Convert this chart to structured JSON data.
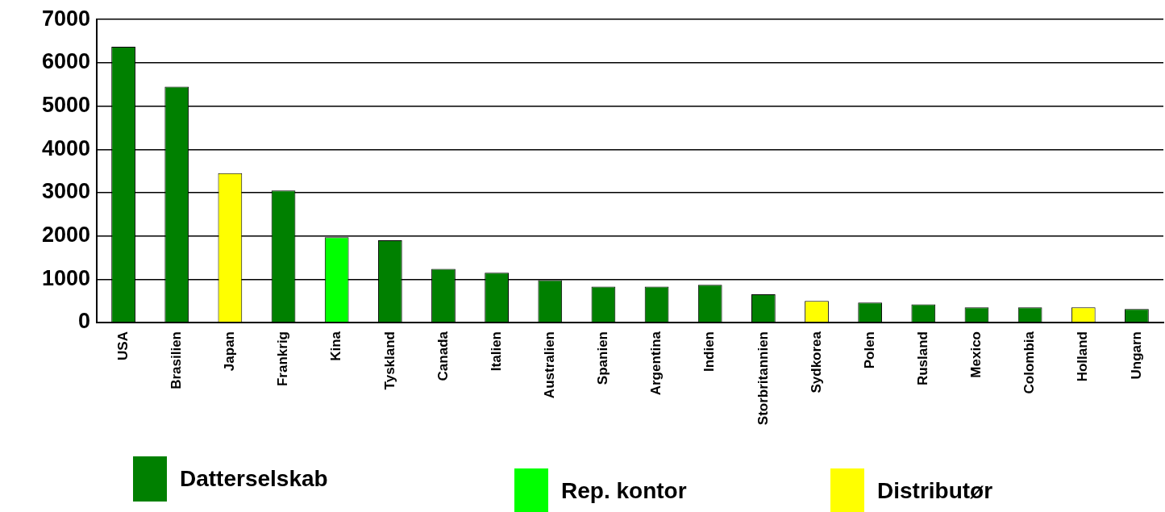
{
  "chart_data": {
    "type": "bar",
    "categories": [
      "USA",
      "Brasilien",
      "Japan",
      "Frankrig",
      "Kina",
      "Tyskland",
      "Canada",
      "Italien",
      "Australien",
      "Spanien",
      "Argentina",
      "Indien",
      "Storbritannien",
      "Sydkorea",
      "Polen",
      "Rusland",
      "Mexico",
      "Colombia",
      "Holland",
      "Ungarn"
    ],
    "series": [
      {
        "name": "Datterselskab",
        "color": "#008000",
        "values": [
          6370,
          5450,
          null,
          3050,
          null,
          1900,
          1240,
          1150,
          980,
          830,
          830,
          870,
          650,
          null,
          460,
          420,
          350,
          350,
          null,
          310
        ]
      },
      {
        "name": "Rep. kontor",
        "color": "#00ff00",
        "values": [
          null,
          null,
          null,
          null,
          1970,
          null,
          null,
          null,
          null,
          null,
          null,
          null,
          null,
          null,
          null,
          null,
          null,
          null,
          null,
          null
        ]
      },
      {
        "name": "Distributør",
        "color": "#ffff00",
        "values": [
          null,
          null,
          3450,
          null,
          null,
          null,
          null,
          null,
          null,
          null,
          null,
          null,
          null,
          500,
          null,
          null,
          null,
          null,
          350,
          null
        ]
      }
    ],
    "ylim": [
      0,
      7000
    ],
    "yticks": [
      0,
      1000,
      2000,
      3000,
      4000,
      5000,
      6000,
      7000
    ],
    "grid": "y",
    "legend": "bottom"
  }
}
